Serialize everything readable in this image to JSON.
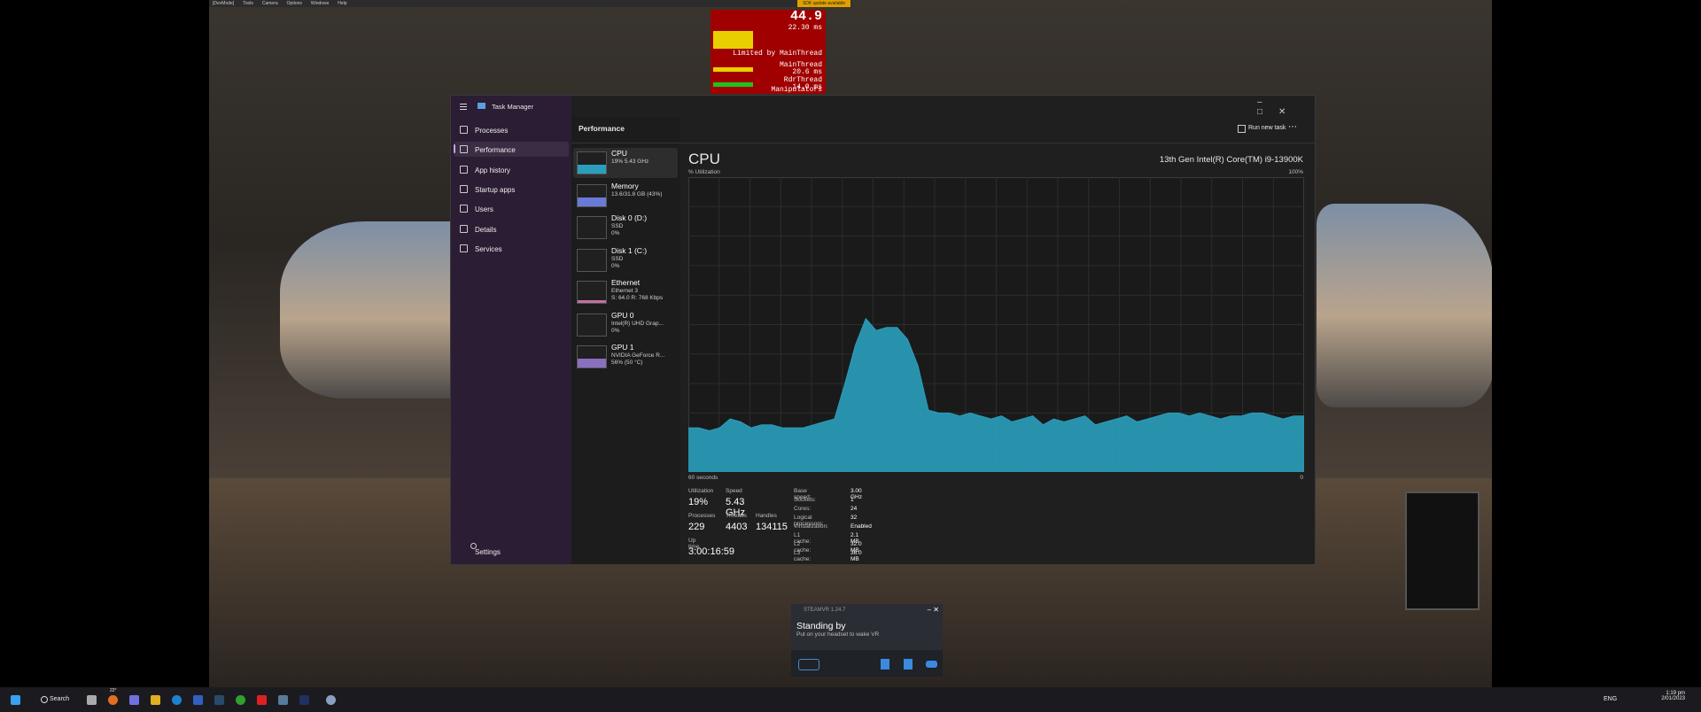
{
  "overlay": {
    "menu": [
      "[DevMode]",
      "Tools",
      "Camera",
      "Options",
      "Windows",
      "Help"
    ],
    "notice": "SDK update available",
    "fps": "44.9",
    "frame_time": "22.30 ms",
    "limited": "Limited by MainThread",
    "threads": [
      {
        "name": "MainThread",
        "time": "20.6 ms"
      },
      {
        "name": "RdrThread",
        "time": "14.0 ms"
      }
    ],
    "footer": "Manipulators"
  },
  "task_manager": {
    "app_title": "Task Manager",
    "nav": [
      "Processes",
      "Performance",
      "App history",
      "Startup apps",
      "Users",
      "Details",
      "Services"
    ],
    "settings": "Settings",
    "page_title": "Performance",
    "run_new_task": "Run new task",
    "resources": [
      {
        "name": "CPU",
        "lines": [
          "19%  5.43 GHz"
        ]
      },
      {
        "name": "Memory",
        "lines": [
          "13.6/31.8 GB (43%)"
        ]
      },
      {
        "name": "Disk 0 (D:)",
        "lines": [
          "SSD",
          "0%"
        ]
      },
      {
        "name": "Disk 1 (C:)",
        "lines": [
          "SSD",
          "0%"
        ]
      },
      {
        "name": "Ethernet",
        "lines": [
          "Ethernet 3",
          "S: 64.0  R: 768 Kbps"
        ]
      },
      {
        "name": "GPU 0",
        "lines": [
          "Intel(R) UHD Grap...",
          "0%"
        ]
      },
      {
        "name": "GPU 1",
        "lines": [
          "NVIDIA GeForce R...",
          "56% (50 °C)"
        ]
      }
    ],
    "cpu": {
      "title": "CPU",
      "model": "13th Gen Intel(R) Core(TM) i9-13900K",
      "y_label": "% Utilization",
      "y_max_label": "100%",
      "x_label": "60 seconds",
      "x_end_label": "0",
      "chart": {
        "type": "area",
        "color": "#2a9fbc",
        "ylim": [
          0,
          100
        ],
        "values": [
          15,
          15,
          14,
          15,
          18,
          17,
          15,
          16,
          16,
          15,
          15,
          15,
          16,
          17,
          18,
          30,
          43,
          52,
          48,
          49,
          49,
          45,
          36,
          21,
          20,
          20,
          19,
          20,
          19,
          18,
          19,
          17,
          18,
          19,
          16,
          18,
          17,
          18,
          19,
          16,
          17,
          18,
          19,
          17,
          18,
          19,
          20,
          20,
          19,
          20,
          19,
          18,
          19,
          19,
          20,
          20,
          19,
          18,
          19,
          19
        ]
      },
      "stats": [
        {
          "label": "Utilization",
          "value": "19%"
        },
        {
          "label": "Speed",
          "value": "5.43 GHz"
        },
        {
          "label": "Processes",
          "value": "229"
        },
        {
          "label": "Threads",
          "value": "4403"
        },
        {
          "label": "Handles",
          "value": "134115"
        },
        {
          "label": "Up time",
          "value": "3:00:16:59"
        }
      ],
      "specs": [
        {
          "label": "Base speed:",
          "value": "3.00 GHz"
        },
        {
          "label": "Sockets:",
          "value": "1"
        },
        {
          "label": "Cores:",
          "value": "24"
        },
        {
          "label": "Logical processors:",
          "value": "32"
        },
        {
          "label": "Virtualization:",
          "value": "Enabled"
        },
        {
          "label": "L1 cache:",
          "value": "2.1 MB"
        },
        {
          "label": "L2 cache:",
          "value": "32.0 MB"
        },
        {
          "label": "L3 cache:",
          "value": "36.0 MB"
        }
      ]
    }
  },
  "steamvr": {
    "title": "STEAMVR 1.24.7",
    "status": "Standing by",
    "hint": "Put on your headset to wake VR"
  },
  "taskbar": {
    "search": "Search",
    "weather": "22°",
    "language": "ENG",
    "time": "1:19 pm",
    "date": "2/01/2023"
  }
}
